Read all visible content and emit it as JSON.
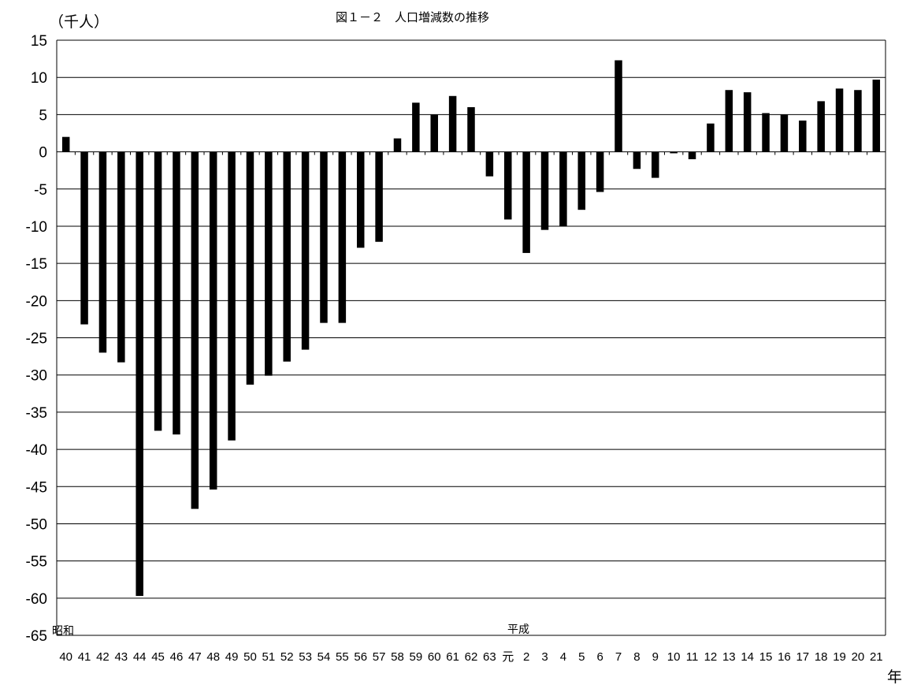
{
  "chart_data": {
    "type": "bar",
    "title": "図１－２　人口増減数の推移",
    "ylabel": "（千人）",
    "xlabel": "年",
    "era_labels": [
      "昭和",
      "平成"
    ],
    "ylim": [
      -65,
      15
    ],
    "ytick_step": 5,
    "grid": true,
    "categories": [
      "40",
      "41",
      "42",
      "43",
      "44",
      "45",
      "46",
      "47",
      "48",
      "49",
      "50",
      "51",
      "52",
      "53",
      "54",
      "55",
      "56",
      "57",
      "58",
      "59",
      "60",
      "61",
      "62",
      "63",
      "元",
      "2",
      "3",
      "4",
      "5",
      "6",
      "7",
      "8",
      "9",
      "10",
      "11",
      "12",
      "13",
      "14",
      "15",
      "16",
      "17",
      "18",
      "19",
      "20",
      "21"
    ],
    "values": [
      2.0,
      -23.2,
      -27.0,
      -28.3,
      -59.7,
      -37.5,
      -38.0,
      -48.0,
      -45.4,
      -38.8,
      -31.3,
      -30.1,
      -28.2,
      -26.6,
      -23.0,
      -23.0,
      -12.9,
      -12.1,
      1.8,
      6.6,
      5.0,
      7.5,
      6.0,
      -3.3,
      -9.1,
      -13.6,
      -10.5,
      -10.0,
      -7.8,
      -5.4,
      12.3,
      -2.3,
      -3.5,
      -0.2,
      -1.0,
      3.8,
      8.3,
      8.0,
      5.2,
      5.0,
      4.2,
      6.8,
      8.5,
      8.3,
      9.7
    ],
    "series": [
      {
        "values_ref": "values",
        "color": "#000000"
      }
    ]
  }
}
